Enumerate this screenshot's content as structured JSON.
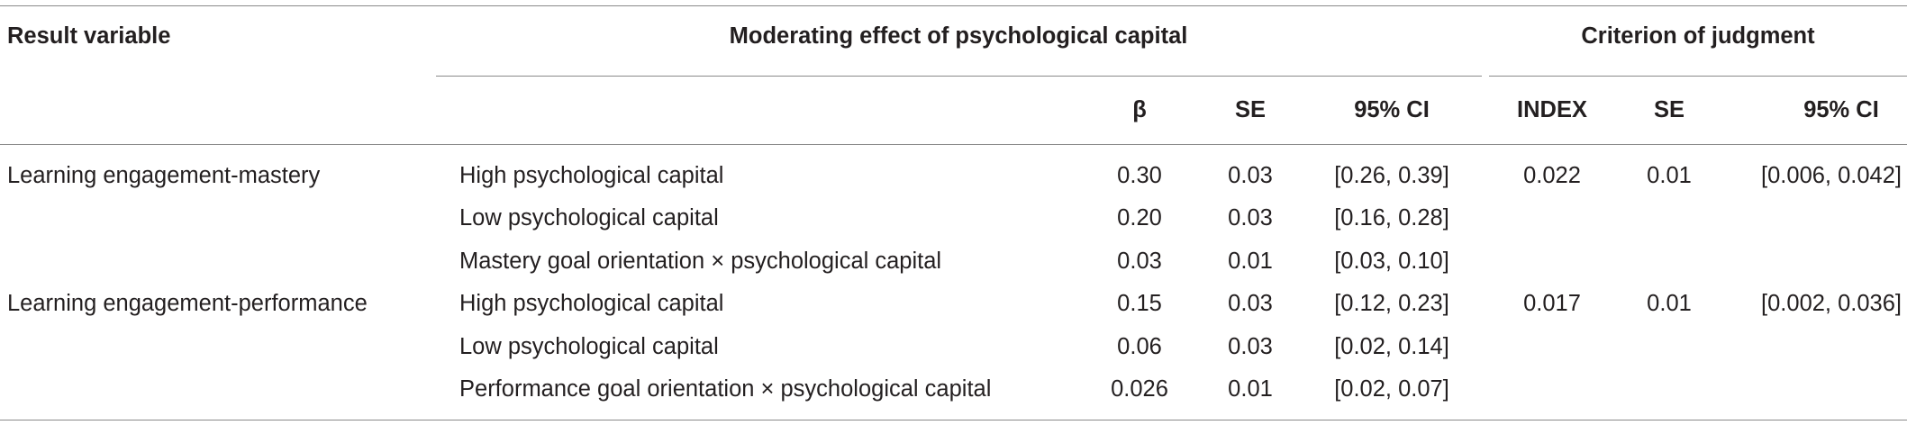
{
  "headers": {
    "result_variable": "Result variable",
    "moderating_effect": "Moderating effect of psychological capital",
    "criterion": "Criterion of judgment",
    "beta": "β",
    "se": "SE",
    "ci": "95% CI",
    "index": "INDEX",
    "se2": "SE",
    "ci2": "95% CI"
  },
  "groups": [
    {
      "result_variable": "Learning engagement-mastery",
      "index": "0.022",
      "se": "0.01",
      "ci": "[0.006, 0.042]",
      "rows": [
        {
          "label": "High psychological capital",
          "beta": "0.30",
          "se": "0.03",
          "ci": "[0.26, 0.39]"
        },
        {
          "label": "Low psychological capital",
          "beta": "0.20",
          "se": "0.03",
          "ci": "[0.16, 0.28]"
        },
        {
          "label": "Mastery goal orientation × psychological capital",
          "beta": "0.03",
          "se": "0.01",
          "ci": "[0.03, 0.10]"
        }
      ]
    },
    {
      "result_variable": "Learning engagement-performance",
      "index": "0.017",
      "se": "0.01",
      "ci": "[0.002, 0.036]",
      "rows": [
        {
          "label": "High psychological capital",
          "beta": "0.15",
          "se": "0.03",
          "ci": "[0.12, 0.23]"
        },
        {
          "label": "Low psychological capital",
          "beta": "0.06",
          "se": "0.03",
          "ci": "[0.02, 0.14]"
        },
        {
          "label": "Performance goal orientation × psychological capital",
          "beta": "0.026",
          "se": "0.01",
          "ci": "[0.02, 0.07]"
        }
      ]
    }
  ]
}
